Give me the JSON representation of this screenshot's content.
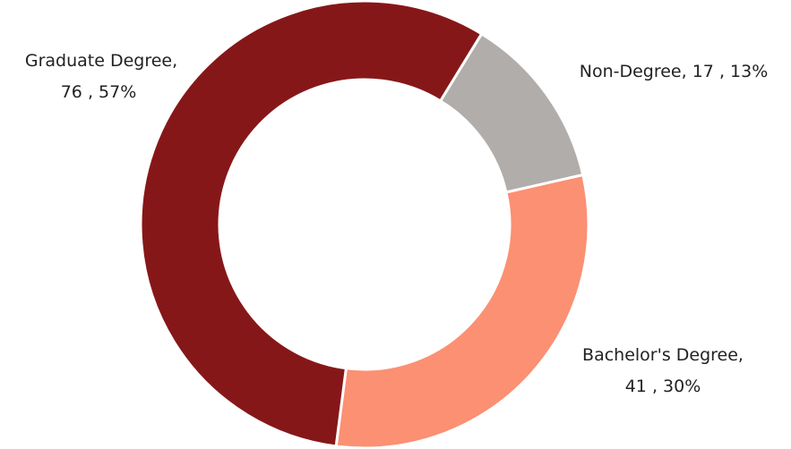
{
  "chart_data": {
    "type": "donut",
    "categories": [
      "Non-Degree",
      "Bachelor's Degree",
      "Graduate Degree"
    ],
    "values": [
      17,
      41,
      76
    ],
    "percents": [
      13,
      30,
      57
    ],
    "percent_labels": [
      "13%",
      "30%",
      "57%"
    ],
    "colors": [
      "#b0adab",
      "#fb9073",
      "#861719"
    ]
  }
}
